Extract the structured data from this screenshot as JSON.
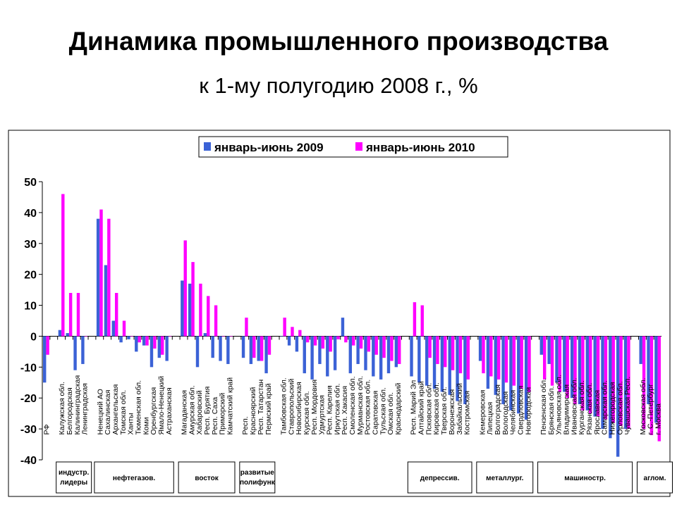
{
  "title": "Динамика промышленного производства",
  "subtitle": "к 1-му полугодию 2008 г., %",
  "chart_data": {
    "type": "bar",
    "ylim": [
      -40,
      50
    ],
    "yticks": [
      50,
      40,
      30,
      20,
      10,
      0,
      -10,
      -20,
      -30,
      -40
    ],
    "grid": false,
    "legend_position": "top-center",
    "series": [
      {
        "name": "январь-июнь 2009",
        "color": "#3B62D6"
      },
      {
        "name": "январь-июнь 2010",
        "color": "#FF00FF"
      }
    ],
    "categories": [
      {
        "label": "РФ",
        "v2009": -15,
        "v2010": -6
      },
      {
        "label": "",
        "v2009": null,
        "v2010": null
      },
      {
        "label": "Калужская обл.",
        "v2009": 2,
        "v2010": 46
      },
      {
        "label": "Белгородская",
        "v2009": 1,
        "v2010": 14
      },
      {
        "label": "Калининградская",
        "v2009": -11,
        "v2010": 14
      },
      {
        "label": "Ленинградская",
        "v2009": -9,
        "v2010": 0
      },
      {
        "label": "",
        "v2009": null,
        "v2010": null
      },
      {
        "label": "Ненецкий АО",
        "v2009": 38,
        "v2010": 41
      },
      {
        "label": "Сахалинская",
        "v2009": 23,
        "v2010": 38
      },
      {
        "label": "Архангельская",
        "v2009": 5,
        "v2010": 14
      },
      {
        "label": "Томская обл.",
        "v2009": -2,
        "v2010": 5
      },
      {
        "label": "Ханты",
        "v2009": -1,
        "v2010": 0
      },
      {
        "label": "Тюменская обл.",
        "v2009": -5,
        "v2010": -2
      },
      {
        "label": "Коми",
        "v2009": -3,
        "v2010": -3
      },
      {
        "label": "Оренбургская",
        "v2009": -10,
        "v2010": -4
      },
      {
        "label": "Ямало-Ненецкий",
        "v2009": -7,
        "v2010": -6
      },
      {
        "label": "Астраханская",
        "v2009": -8,
        "v2010": 0
      },
      {
        "label": "",
        "v2009": null,
        "v2010": null
      },
      {
        "label": "Магаданская",
        "v2009": 18,
        "v2010": 31
      },
      {
        "label": "Амурская обл.",
        "v2009": 17,
        "v2010": 24
      },
      {
        "label": "Хабаровский",
        "v2009": -10,
        "v2010": 17
      },
      {
        "label": "Респ. Бурятия",
        "v2009": 1,
        "v2010": 13
      },
      {
        "label": "Респ. Саха",
        "v2009": -7,
        "v2010": 10
      },
      {
        "label": "Приморский",
        "v2009": -8,
        "v2010": 0
      },
      {
        "label": "Камчатский край",
        "v2009": -9,
        "v2010": 0
      },
      {
        "label": "",
        "v2009": null,
        "v2010": null
      },
      {
        "label": "Респ.",
        "v2009": -7,
        "v2010": 6
      },
      {
        "label": "Красноярский",
        "v2009": -9,
        "v2010": -7
      },
      {
        "label": "Респ. Татарстан",
        "v2009": -8,
        "v2010": -8
      },
      {
        "label": "Пермский край",
        "v2009": -12,
        "v2010": -6
      },
      {
        "label": "",
        "v2009": null,
        "v2010": null
      },
      {
        "label": "Тамбовская обл.",
        "v2009": 0,
        "v2010": 6
      },
      {
        "label": "Ставропольский",
        "v2009": -3,
        "v2010": 3
      },
      {
        "label": "Новосибирская",
        "v2009": -5,
        "v2010": 2
      },
      {
        "label": "Курская обл.",
        "v2009": -12,
        "v2010": -2
      },
      {
        "label": "Респ. Мордовия",
        "v2009": -14,
        "v2010": -3
      },
      {
        "label": "Удмуртская",
        "v2009": -9,
        "v2010": -4
      },
      {
        "label": "Респ. Карелия",
        "v2009": -13,
        "v2010": -5
      },
      {
        "label": "Иркутская обл.",
        "v2009": -11,
        "v2010": -1
      },
      {
        "label": "Респ. Хакасия",
        "v2009": 6,
        "v2010": -2
      },
      {
        "label": "Смоленская обл.",
        "v2009": -12,
        "v2010": -3
      },
      {
        "label": "Мурманская обл.",
        "v2009": -9,
        "v2010": -4
      },
      {
        "label": "Ростовская обл.",
        "v2009": -11,
        "v2010": -5
      },
      {
        "label": "Саратовская",
        "v2009": -13,
        "v2010": -6
      },
      {
        "label": "Тульская обл.",
        "v2009": -14,
        "v2010": -7
      },
      {
        "label": "Омская обл.",
        "v2009": -12,
        "v2010": -8
      },
      {
        "label": "Краснодарский",
        "v2009": -10,
        "v2010": -9
      },
      {
        "label": "",
        "v2009": null,
        "v2010": null
      },
      {
        "label": "Респ. Марий Эл",
        "v2009": -13,
        "v2010": 11
      },
      {
        "label": "Алтайский край",
        "v2009": -15,
        "v2010": 10
      },
      {
        "label": "Псковская обл.",
        "v2009": -16,
        "v2010": -7
      },
      {
        "label": "Кировская обл.",
        "v2009": -17,
        "v2010": -9
      },
      {
        "label": "Тверская обл.",
        "v2009": -18,
        "v2010": -10
      },
      {
        "label": "Воронежская",
        "v2009": -19,
        "v2010": -11
      },
      {
        "label": "Забайкальский",
        "v2009": -21,
        "v2010": -12
      },
      {
        "label": "Костромская",
        "v2009": -22,
        "v2010": -14
      },
      {
        "label": "",
        "v2009": null,
        "v2010": null
      },
      {
        "label": "Кемеровская",
        "v2009": -8,
        "v2010": -12
      },
      {
        "label": "Липецкая",
        "v2009": -17,
        "v2010": -13
      },
      {
        "label": "Волгоградская",
        "v2009": -19,
        "v2010": -14
      },
      {
        "label": "Вологодская",
        "v2009": -22,
        "v2010": -15
      },
      {
        "label": "Челябинская",
        "v2009": -24,
        "v2010": -16
      },
      {
        "label": "Свердловская",
        "v2009": -25,
        "v2010": -17
      },
      {
        "label": "Новгородская",
        "v2009": -27,
        "v2010": -18
      },
      {
        "label": "",
        "v2009": null,
        "v2010": null
      },
      {
        "label": "Пензенская обл.",
        "v2009": -6,
        "v2010": -14
      },
      {
        "label": "Брянская обл.",
        "v2009": -9,
        "v2010": -16
      },
      {
        "label": "Ульяновская обл.",
        "v2009": -15,
        "v2010": -18
      },
      {
        "label": "Владимирская",
        "v2009": -18,
        "v2010": -20
      },
      {
        "label": "Ивановская обл.",
        "v2009": -20,
        "v2010": -22
      },
      {
        "label": "Курганская обл.",
        "v2009": -22,
        "v2010": -24
      },
      {
        "label": "Рязанская обл.",
        "v2009": -24,
        "v2010": -25
      },
      {
        "label": "Ярославская",
        "v2009": -26,
        "v2010": -26
      },
      {
        "label": "Самарская обл.",
        "v2009": -30,
        "v2010": -27
      },
      {
        "label": "Нижегородская",
        "v2009": -33,
        "v2010": -28
      },
      {
        "label": "Орловская обл.",
        "v2009": -39,
        "v2010": -29
      },
      {
        "label": "Чувашская Респ.",
        "v2009": -30,
        "v2010": -30
      },
      {
        "label": "",
        "v2009": null,
        "v2010": null
      },
      {
        "label": "Московская обл.",
        "v2009": -9,
        "v2010": -30
      },
      {
        "label": "г. С.-Петербург",
        "v2009": -22,
        "v2010": -32
      },
      {
        "label": "г. Москва",
        "v2009": -28,
        "v2010": -34
      }
    ],
    "group_labels": [
      {
        "label": "индустр. лидеры",
        "first": 2,
        "last": 5
      },
      {
        "label": "нефтегазов.",
        "first": 7,
        "last": 16
      },
      {
        "label": "восток",
        "first": 18,
        "last": 24
      },
      {
        "label": "развитые полифунк",
        "first": 26,
        "last": 29
      },
      {
        "label": "депрессив.",
        "first": 48,
        "last": 55
      },
      {
        "label": "металлург.",
        "first": 57,
        "last": 63
      },
      {
        "label": "машиностр.",
        "first": 65,
        "last": 76
      },
      {
        "label": "аглом.",
        "first": 78,
        "last": 80
      }
    ]
  }
}
